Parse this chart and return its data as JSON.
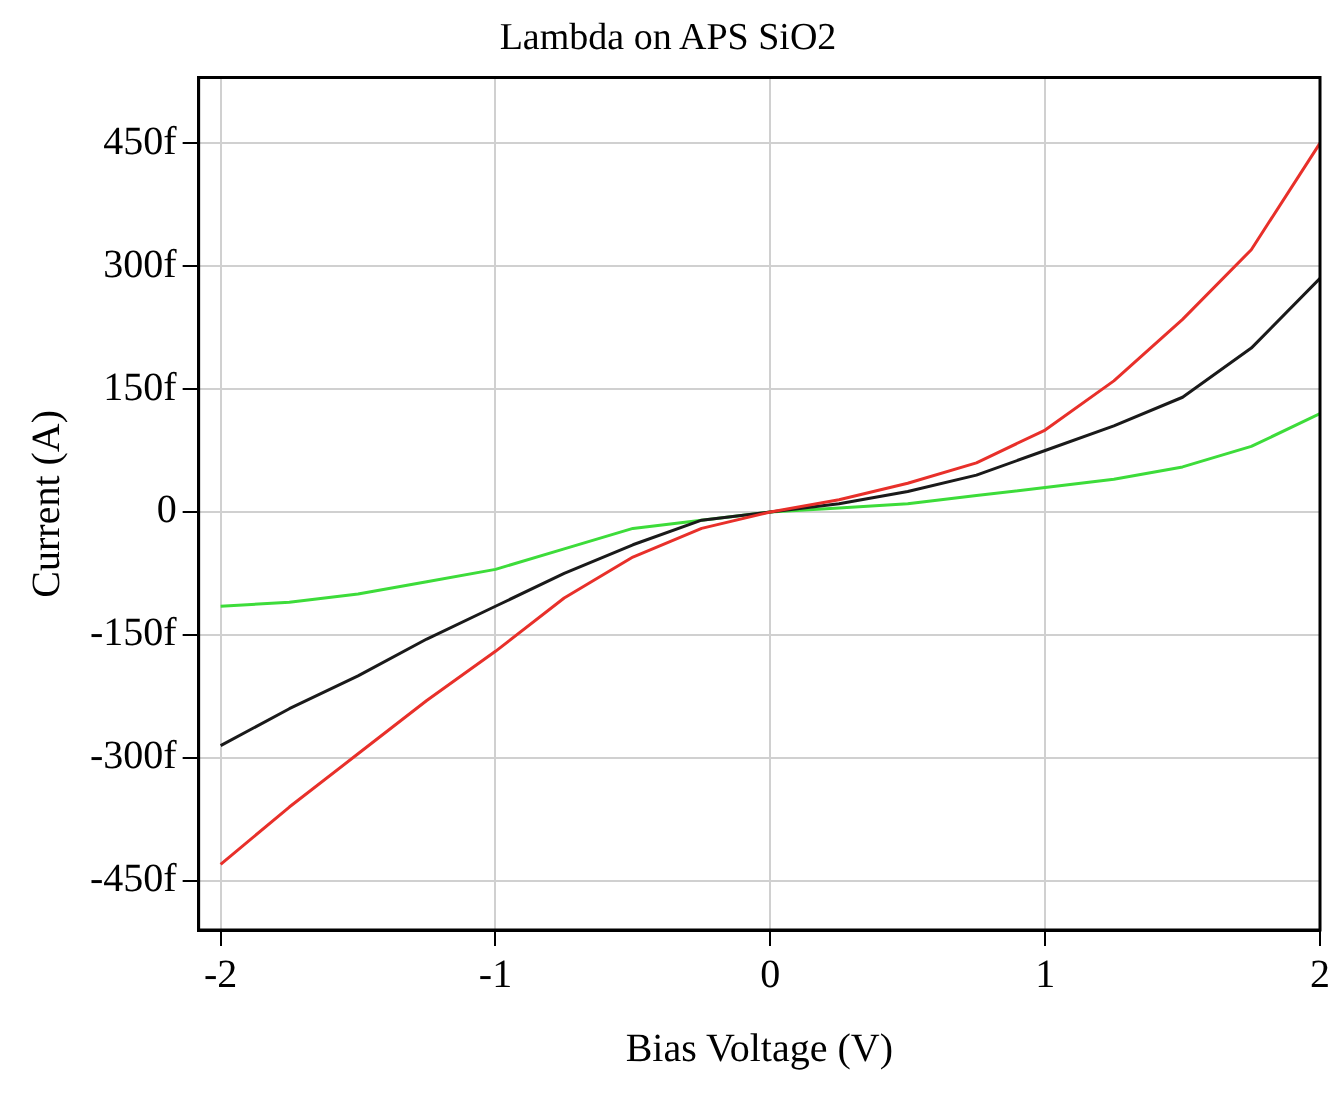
{
  "chart_data": {
    "type": "line",
    "title": "Lambda on APS SiO2",
    "xlabel": "Bias Voltage (V)",
    "ylabel": "Current (A)",
    "x": [
      -2,
      -1.75,
      -1.5,
      -1.25,
      -1,
      -0.75,
      -0.5,
      -0.25,
      0,
      0.25,
      0.5,
      0.75,
      1,
      1.25,
      1.5,
      1.75,
      2
    ],
    "series": [
      {
        "color": "#e8302a",
        "values": [
          -430,
          -360,
          -295,
          -230,
          -170,
          -105,
          -55,
          -20,
          0,
          15,
          35,
          60,
          100,
          160,
          235,
          320,
          450
        ]
      },
      {
        "color": "#1a1a1a",
        "values": [
          -285,
          -240,
          -200,
          -155,
          -115,
          -75,
          -40,
          -10,
          0,
          10,
          25,
          45,
          75,
          105,
          140,
          200,
          285
        ]
      },
      {
        "color": "#3ddc3a",
        "values": [
          -115,
          -110,
          -100,
          -85,
          -70,
          -45,
          -20,
          -10,
          0,
          5,
          10,
          20,
          30,
          40,
          55,
          80,
          120
        ]
      }
    ],
    "xlim": [
      -2.08,
      2.0
    ],
    "xticks": [
      -2,
      -1,
      0,
      1,
      2
    ],
    "ylim": [
      -510,
      530
    ],
    "yticks": [
      {
        "value": -450,
        "label": "-450f"
      },
      {
        "value": -300,
        "label": "-300f"
      },
      {
        "value": -150,
        "label": "-150f"
      },
      0,
      {
        "value": 150,
        "label": "150f"
      },
      {
        "value": 300,
        "label": "300f"
      },
      {
        "value": 450,
        "label": "450f"
      }
    ],
    "grid": true,
    "legend": false,
    "marker": "none",
    "line_style": "solid"
  }
}
